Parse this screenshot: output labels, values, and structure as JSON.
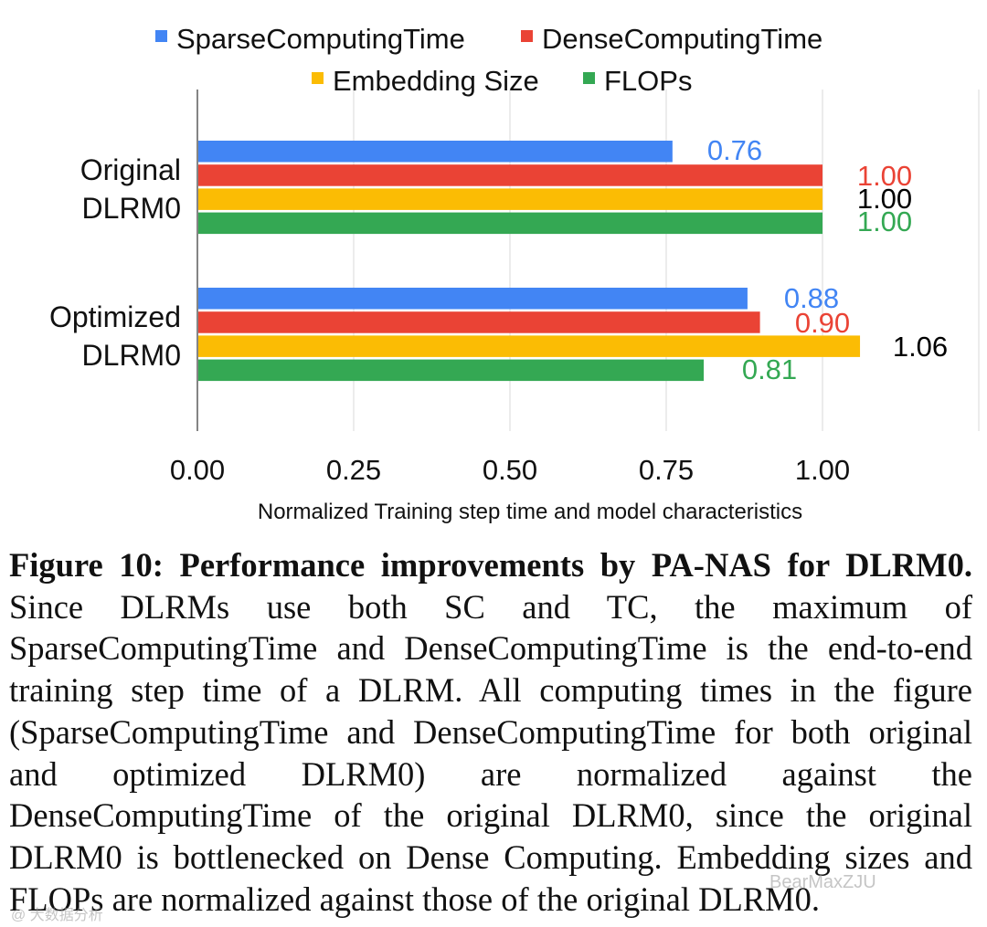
{
  "chart_data": {
    "type": "bar",
    "orientation": "horizontal",
    "categories": [
      "Original\nDLRM0",
      "Optimized\nDLRM0"
    ],
    "series": [
      {
        "name": "SparseComputingTime",
        "color": "#4285F4",
        "values": [
          0.76,
          0.88
        ],
        "labels": [
          "0.76",
          "0.88"
        ],
        "label_colors": [
          "#4285F4",
          "#4285F4"
        ]
      },
      {
        "name": "DenseComputingTime",
        "color": "#EA4335",
        "values": [
          1.0,
          0.9
        ],
        "labels": [
          "1.00",
          "0.90"
        ],
        "label_colors": [
          "#EA4335",
          "#EA4335"
        ]
      },
      {
        "name": "Embedding Size",
        "color": "#FBBC04",
        "values": [
          1.0,
          1.06
        ],
        "labels": [
          "1.00",
          "1.06"
        ],
        "label_colors": [
          "#000000",
          "#000000"
        ]
      },
      {
        "name": "FLOPs",
        "color": "#34A853",
        "values": [
          1.0,
          0.81
        ],
        "labels": [
          "1.00",
          "0.81"
        ],
        "label_colors": [
          "#34A853",
          "#34A853"
        ]
      }
    ],
    "xlim": [
      0,
      1.25
    ],
    "xticks": [
      "0.00",
      "0.25",
      "0.50",
      "0.75",
      "1.00"
    ],
    "xlabel": "Normalized Training step time and model characteristics",
    "grid": "vertical",
    "legend": "top"
  },
  "caption": {
    "bold": "Figure 10: Performance improvements by PA-NAS for DLRM0.",
    "body": "Since DLRMs use both SC and TC, the maximum of SparseComputingTime and DenseComputingTime is the end-to-end training step time of a DLRM. All computing times in the figure (SparseComputingTime and DenseComputingTime for both original and optimized DLRM0) are normalized against the DenseComputingTime of the original DLRM0, since the original DLRM0 is bottlenecked on Dense Computing. Embedding sizes and FLOPs are normalized against those of the original DLRM0."
  },
  "watermark": {
    "brand": "BearMaxZJU",
    "source": "@ 大数据分析"
  }
}
